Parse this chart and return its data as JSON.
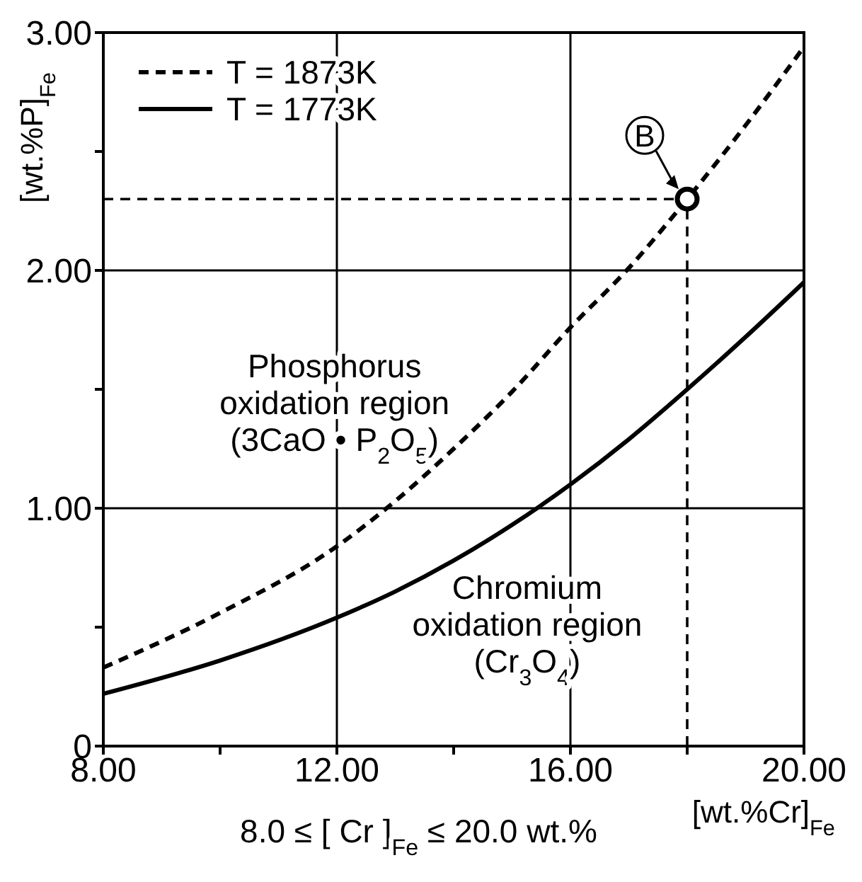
{
  "chart_data": {
    "type": "line",
    "xlabel": "[wt.%Cr]$_{Fe}$",
    "ylabel": "[wt.%P]$_{Fe}$",
    "xlim": [
      8,
      20
    ],
    "ylim": [
      0,
      3
    ],
    "xticks": [
      {
        "value": 8,
        "label": "8.00"
      },
      {
        "value": 10,
        "label": null
      },
      {
        "value": 12,
        "label": "12.00"
      },
      {
        "value": 14,
        "label": null
      },
      {
        "value": 16,
        "label": "16.00"
      },
      {
        "value": 18,
        "label": null
      },
      {
        "value": 20,
        "label": "20.00"
      }
    ],
    "yticks": [
      0,
      {
        "value": 0.5,
        "label": null
      },
      {
        "value": 1,
        "label": "1.00"
      },
      {
        "value": 1.5,
        "label": null
      },
      {
        "value": 2,
        "label": "2.00"
      },
      {
        "value": 2.5,
        "label": null
      },
      {
        "value": 3,
        "label": "3.00"
      }
    ],
    "grid": true,
    "legend": "top left",
    "marker": "none",
    "x": [
      8,
      10,
      12,
      13,
      14,
      15,
      16,
      17,
      18,
      19,
      20
    ],
    "series": [
      {
        "name": "T = 1873K",
        "color": "#000000",
        "line_style": "dashed",
        "values": [
          0.33,
          0.56,
          0.84,
          1.03,
          1.25,
          1.49,
          1.76,
          2.01,
          2.3,
          2.61,
          2.94
        ]
      },
      {
        "name": "T = 1773K",
        "color": "#000000",
        "line_style": "solid",
        "values": [
          0.22,
          0.36,
          0.54,
          0.65,
          0.78,
          0.93,
          1.1,
          1.29,
          1.5,
          1.72,
          1.95
        ]
      },
      {
        "type": "scatter",
        "color": "#000000",
        "marker": "circle",
        "x": [
          18
        ],
        "values": [
          2.3
        ]
      }
    ],
    "ref_lines": [
      {
        "axis": "y",
        "value": 2.3,
        "color": "#000000",
        "line_style": "dashed"
      },
      {
        "axis": "x",
        "value": 18,
        "color": "#000000",
        "line_style": "dashed"
      }
    ],
    "annotations": [
      {
        "text": "B",
        "x": 18,
        "y": 2.3
      },
      "Phosphorus\noxidation region\n(3CaO • P$_{2}$O$_{5}$)",
      "Chromium\noxidation region\n(Cr$_{3}$O$_{4}$)",
      "8.0  ≤ [ Cr ]$_{Fe}$ ≤ 20.0 wt.%"
    ]
  }
}
